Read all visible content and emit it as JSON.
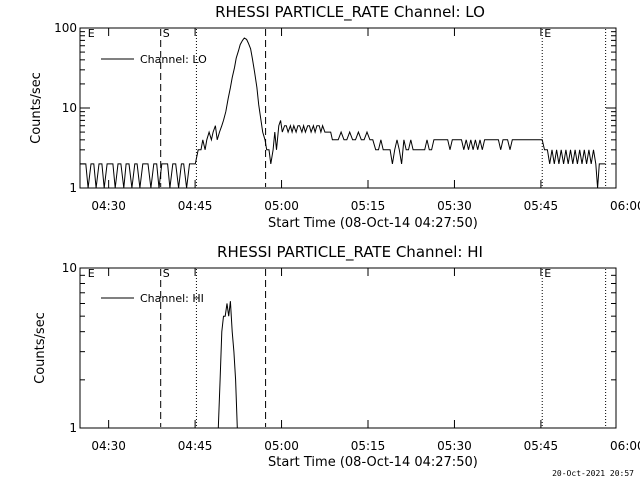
{
  "footer": {
    "timestamp": "20-Oct-2021 20:57"
  },
  "chart_data": [
    {
      "type": "line",
      "title": "RHESSI PARTICLE_RATE Channel: LO",
      "xlabel": "Start Time (08-Oct-14 04:27:50)",
      "ylabel": "Counts/sec",
      "yscale": "log",
      "xlim_minutes": [
        -2.8,
        90.2
      ],
      "ylim": [
        1,
        100
      ],
      "xticks": [
        {
          "m": 2.17,
          "label": "04:30"
        },
        {
          "m": 17.17,
          "label": "04:45"
        },
        {
          "m": 32.17,
          "label": "05:00"
        },
        {
          "m": 47.17,
          "label": "05:15"
        },
        {
          "m": 62.17,
          "label": "05:30"
        },
        {
          "m": 77.17,
          "label": "05:45"
        },
        {
          "m": 92.17,
          "label": "06:00"
        }
      ],
      "yticks": [
        {
          "v": 1,
          "label": "1"
        },
        {
          "v": 10,
          "label": "10"
        },
        {
          "v": 100,
          "label": "100"
        }
      ],
      "legend": {
        "label": "Channel: LO",
        "position": "top-left"
      },
      "markers": [
        {
          "m": -1.8,
          "label": "E",
          "style": "none"
        },
        {
          "m": 11.2,
          "label": "S",
          "style": "dashed"
        },
        {
          "m": 17.4,
          "label": "",
          "style": "dotted"
        },
        {
          "m": 29.4,
          "label": "",
          "style": "dashed"
        },
        {
          "m": 77.4,
          "label": "E",
          "style": "dotted"
        },
        {
          "m": 88.4,
          "label": "",
          "style": "dotted"
        }
      ],
      "series": [
        {
          "name": "Channel: LO",
          "points": [
            [
              -2.8,
              2
            ],
            [
              -1.8,
              2
            ],
            [
              -1.4,
              1
            ],
            [
              -0.9,
              2
            ],
            [
              -0.4,
              2
            ],
            [
              0.0,
              1
            ],
            [
              0.5,
              2
            ],
            [
              1.0,
              2
            ],
            [
              1.4,
              1
            ],
            [
              1.9,
              2
            ],
            [
              2.4,
              2
            ],
            [
              2.9,
              2
            ],
            [
              3.3,
              1
            ],
            [
              3.8,
              2
            ],
            [
              4.3,
              2
            ],
            [
              4.8,
              1
            ],
            [
              5.2,
              2
            ],
            [
              5.7,
              2
            ],
            [
              6.2,
              1
            ],
            [
              6.7,
              2
            ],
            [
              7.1,
              2
            ],
            [
              7.6,
              1
            ],
            [
              8.1,
              2
            ],
            [
              8.6,
              2
            ],
            [
              9.0,
              2
            ],
            [
              9.5,
              1
            ],
            [
              10.0,
              2
            ],
            [
              10.5,
              2
            ],
            [
              10.9,
              1
            ],
            [
              11.4,
              2
            ],
            [
              11.9,
              2
            ],
            [
              12.4,
              2
            ],
            [
              12.8,
              1
            ],
            [
              13.3,
              2
            ],
            [
              13.8,
              2
            ],
            [
              14.3,
              1
            ],
            [
              14.8,
              2
            ],
            [
              15.2,
              2
            ],
            [
              15.7,
              1
            ],
            [
              16.2,
              2
            ],
            [
              16.7,
              2
            ],
            [
              17.2,
              2
            ],
            [
              17.7,
              3
            ],
            [
              18.2,
              3
            ],
            [
              18.5,
              4
            ],
            [
              18.9,
              3
            ],
            [
              19.2,
              4
            ],
            [
              19.6,
              5
            ],
            [
              20.0,
              4
            ],
            [
              20.3,
              5
            ],
            [
              20.7,
              6
            ],
            [
              21.0,
              4
            ],
            [
              21.4,
              5
            ],
            [
              21.8,
              6
            ],
            [
              22.1,
              7
            ],
            [
              22.5,
              9
            ],
            [
              22.9,
              13
            ],
            [
              23.3,
              18
            ],
            [
              23.6,
              24
            ],
            [
              24.0,
              32
            ],
            [
              24.3,
              42
            ],
            [
              24.7,
              52
            ],
            [
              25.0,
              62
            ],
            [
              25.4,
              70
            ],
            [
              25.7,
              75
            ],
            [
              26.1,
              72
            ],
            [
              26.4,
              65
            ],
            [
              26.8,
              55
            ],
            [
              27.1,
              42
            ],
            [
              27.5,
              28
            ],
            [
              27.9,
              18
            ],
            [
              28.2,
              11
            ],
            [
              28.6,
              7
            ],
            [
              28.9,
              5
            ],
            [
              29.3,
              4
            ],
            [
              29.6,
              3
            ],
            [
              30.0,
              3
            ],
            [
              30.3,
              2
            ],
            [
              30.7,
              3
            ],
            [
              31.0,
              5
            ],
            [
              31.3,
              3
            ],
            [
              31.7,
              6
            ],
            [
              32.0,
              7
            ],
            [
              32.3,
              5
            ],
            [
              32.7,
              6
            ],
            [
              33.0,
              6
            ],
            [
              33.3,
              5
            ],
            [
              33.7,
              6
            ],
            [
              34.0,
              5
            ],
            [
              34.3,
              6
            ],
            [
              34.7,
              5
            ],
            [
              35.0,
              6
            ],
            [
              35.3,
              6
            ],
            [
              35.7,
              5
            ],
            [
              36.0,
              6
            ],
            [
              36.3,
              5
            ],
            [
              36.7,
              6
            ],
            [
              37.0,
              6
            ],
            [
              37.3,
              5
            ],
            [
              37.7,
              6
            ],
            [
              38.0,
              5
            ],
            [
              38.3,
              6
            ],
            [
              38.7,
              6
            ],
            [
              39.0,
              5
            ],
            [
              39.3,
              6
            ],
            [
              39.7,
              5
            ],
            [
              40.0,
              5
            ],
            [
              40.3,
              5
            ],
            [
              40.7,
              5
            ],
            [
              41.0,
              4
            ],
            [
              42.0,
              4
            ],
            [
              42.5,
              5
            ],
            [
              43.0,
              4
            ],
            [
              43.5,
              4
            ],
            [
              44.0,
              5
            ],
            [
              44.5,
              4
            ],
            [
              45.0,
              4
            ],
            [
              45.5,
              5
            ],
            [
              46.0,
              4
            ],
            [
              46.5,
              4
            ],
            [
              47.0,
              5
            ],
            [
              47.5,
              4
            ],
            [
              48.0,
              4
            ],
            [
              48.5,
              3
            ],
            [
              49.0,
              3
            ],
            [
              49.4,
              4
            ],
            [
              49.8,
              3
            ],
            [
              50.2,
              3
            ],
            [
              50.6,
              3
            ],
            [
              51.0,
              3
            ],
            [
              51.4,
              2
            ],
            [
              51.8,
              3
            ],
            [
              52.2,
              4
            ],
            [
              52.6,
              3
            ],
            [
              53.0,
              2
            ],
            [
              53.4,
              4
            ],
            [
              53.8,
              3
            ],
            [
              54.2,
              3
            ],
            [
              54.6,
              4
            ],
            [
              55.0,
              3
            ],
            [
              55.4,
              3
            ],
            [
              55.8,
              3
            ],
            [
              56.2,
              3
            ],
            [
              56.6,
              3
            ],
            [
              57.0,
              3
            ],
            [
              57.4,
              4
            ],
            [
              57.8,
              3
            ],
            [
              58.2,
              3
            ],
            [
              58.6,
              4
            ],
            [
              59.0,
              4
            ],
            [
              59.4,
              4
            ],
            [
              59.8,
              4
            ],
            [
              60.2,
              4
            ],
            [
              60.6,
              4
            ],
            [
              61.0,
              4
            ],
            [
              61.4,
              3
            ],
            [
              61.8,
              4
            ],
            [
              62.2,
              4
            ],
            [
              62.6,
              4
            ],
            [
              63.0,
              4
            ],
            [
              63.4,
              4
            ],
            [
              63.8,
              3
            ],
            [
              64.2,
              4
            ],
            [
              64.6,
              3
            ],
            [
              65.0,
              4
            ],
            [
              65.4,
              3
            ],
            [
              65.8,
              4
            ],
            [
              66.2,
              3
            ],
            [
              66.6,
              4
            ],
            [
              67.0,
              3
            ],
            [
              67.4,
              4
            ],
            [
              67.8,
              4
            ],
            [
              68.2,
              4
            ],
            [
              68.6,
              4
            ],
            [
              69.0,
              4
            ],
            [
              69.4,
              4
            ],
            [
              69.8,
              4
            ],
            [
              70.2,
              3
            ],
            [
              70.6,
              4
            ],
            [
              71.0,
              4
            ],
            [
              71.4,
              4
            ],
            [
              71.8,
              3
            ],
            [
              72.2,
              4
            ],
            [
              72.6,
              4
            ],
            [
              73.0,
              4
            ],
            [
              73.4,
              4
            ],
            [
              73.8,
              4
            ],
            [
              74.2,
              4
            ],
            [
              74.6,
              4
            ],
            [
              75.0,
              4
            ],
            [
              75.4,
              4
            ],
            [
              75.8,
              4
            ],
            [
              76.2,
              4
            ],
            [
              76.6,
              4
            ],
            [
              77.0,
              4
            ],
            [
              77.4,
              4
            ],
            [
              77.8,
              3
            ],
            [
              78.3,
              3
            ],
            [
              78.7,
              2
            ],
            [
              79.1,
              3
            ],
            [
              79.5,
              2
            ],
            [
              79.9,
              3
            ],
            [
              80.3,
              2
            ],
            [
              80.7,
              3
            ],
            [
              81.1,
              2
            ],
            [
              81.5,
              3
            ],
            [
              81.9,
              2
            ],
            [
              82.3,
              3
            ],
            [
              82.7,
              2
            ],
            [
              83.1,
              3
            ],
            [
              83.5,
              2
            ],
            [
              83.9,
              3
            ],
            [
              84.3,
              2
            ],
            [
              84.7,
              3
            ],
            [
              85.1,
              2
            ],
            [
              85.5,
              3
            ],
            [
              85.9,
              2
            ],
            [
              86.3,
              3
            ],
            [
              86.7,
              2
            ],
            [
              87.0,
              1
            ],
            [
              87.3,
              2
            ],
            [
              87.7,
              2
            ],
            [
              88.4,
              2
            ]
          ]
        }
      ]
    },
    {
      "type": "line",
      "title": "RHESSI PARTICLE_RATE Channel: HI",
      "xlabel": "Start Time (08-Oct-14 04:27:50)",
      "ylabel": "Counts/sec",
      "yscale": "log",
      "xlim_minutes": [
        -2.8,
        90.2
      ],
      "ylim": [
        1,
        10
      ],
      "xticks": [
        {
          "m": 2.17,
          "label": "04:30"
        },
        {
          "m": 17.17,
          "label": "04:45"
        },
        {
          "m": 32.17,
          "label": "05:00"
        },
        {
          "m": 47.17,
          "label": "05:15"
        },
        {
          "m": 62.17,
          "label": "05:30"
        },
        {
          "m": 77.17,
          "label": "05:45"
        },
        {
          "m": 92.17,
          "label": "06:00"
        }
      ],
      "yticks": [
        {
          "v": 1,
          "label": "1"
        },
        {
          "v": 10,
          "label": "10"
        }
      ],
      "legend": {
        "label": "Channel: HI",
        "position": "top-left"
      },
      "markers": [
        {
          "m": -1.8,
          "label": "E",
          "style": "none"
        },
        {
          "m": 11.2,
          "label": "S",
          "style": "dashed"
        },
        {
          "m": 17.4,
          "label": "",
          "style": "dotted"
        },
        {
          "m": 29.4,
          "label": "",
          "style": "dashed"
        },
        {
          "m": 77.4,
          "label": "E",
          "style": "dotted"
        },
        {
          "m": 88.4,
          "label": "",
          "style": "dotted"
        }
      ],
      "series": [
        {
          "name": "Channel: HI",
          "points": [
            [
              21.2,
              1
            ],
            [
              21.5,
              2
            ],
            [
              21.8,
              4
            ],
            [
              22.1,
              5
            ],
            [
              22.4,
              5
            ],
            [
              22.7,
              6
            ],
            [
              23.0,
              5
            ],
            [
              23.3,
              6.2
            ],
            [
              23.6,
              4
            ],
            [
              23.9,
              3
            ],
            [
              24.2,
              2
            ],
            [
              24.5,
              1
            ]
          ]
        }
      ]
    }
  ]
}
